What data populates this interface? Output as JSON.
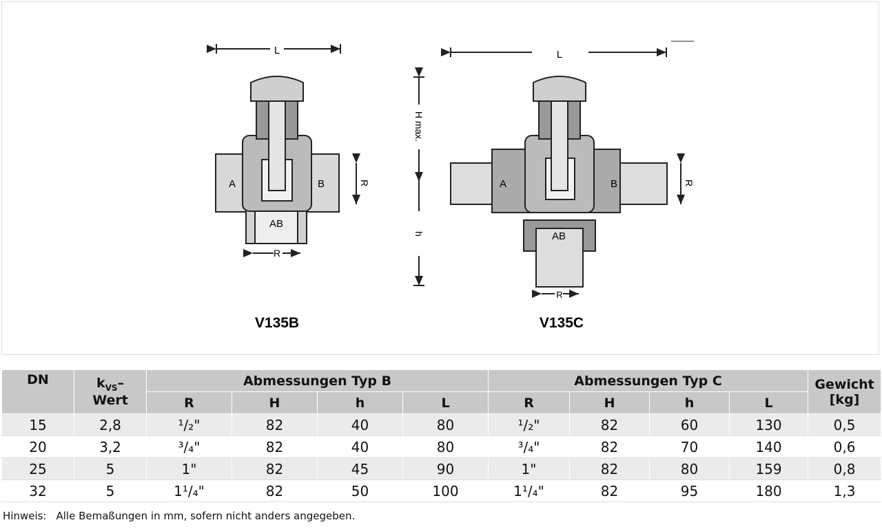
{
  "figure": {
    "v135b": {
      "title": "V135B",
      "L": "L",
      "R_bottom": "R",
      "R_side": "R",
      "A": "A",
      "B": "B",
      "AB": "AB"
    },
    "v135c": {
      "title": "V135C",
      "L": "L",
      "H": "H max.",
      "h": "h",
      "R_bottom": "R",
      "R_side": "R",
      "A": "A",
      "B": "B",
      "AB": "AB"
    }
  },
  "table": {
    "header": {
      "dn": "DN",
      "kvs": {
        "k": "k",
        "sub": "VS",
        "dash": "–",
        "wert": "Wert"
      },
      "typ_b": "Abmessungen Typ B",
      "typ_c": "Abmessungen Typ C",
      "gewicht": "Gewicht",
      "gewicht_unit": "[kg]",
      "sub_b": [
        "R",
        "H",
        "h",
        "L"
      ],
      "sub_c": [
        "R",
        "H",
        "h",
        "L"
      ]
    },
    "rows": [
      [
        "15",
        "2,8",
        "¹/₂\"",
        "82",
        "40",
        "80",
        "¹/₂\"",
        "82",
        "60",
        "130",
        "0,5"
      ],
      [
        "20",
        "3,2",
        "³/₄\"",
        "82",
        "40",
        "80",
        "³/₄\"",
        "82",
        "70",
        "140",
        "0,6"
      ],
      [
        "25",
        "5",
        "1\"",
        "82",
        "45",
        "90",
        "1\"",
        "82",
        "80",
        "159",
        "0,8"
      ],
      [
        "32",
        "5",
        "1¹/₄\"",
        "82",
        "50",
        "100",
        "1¹/₄\"",
        "82",
        "95",
        "180",
        "1,3"
      ]
    ]
  },
  "note": {
    "label": "Hinweis:",
    "text": "Alle Bemaßungen in mm, sofern nicht anders angegeben."
  }
}
